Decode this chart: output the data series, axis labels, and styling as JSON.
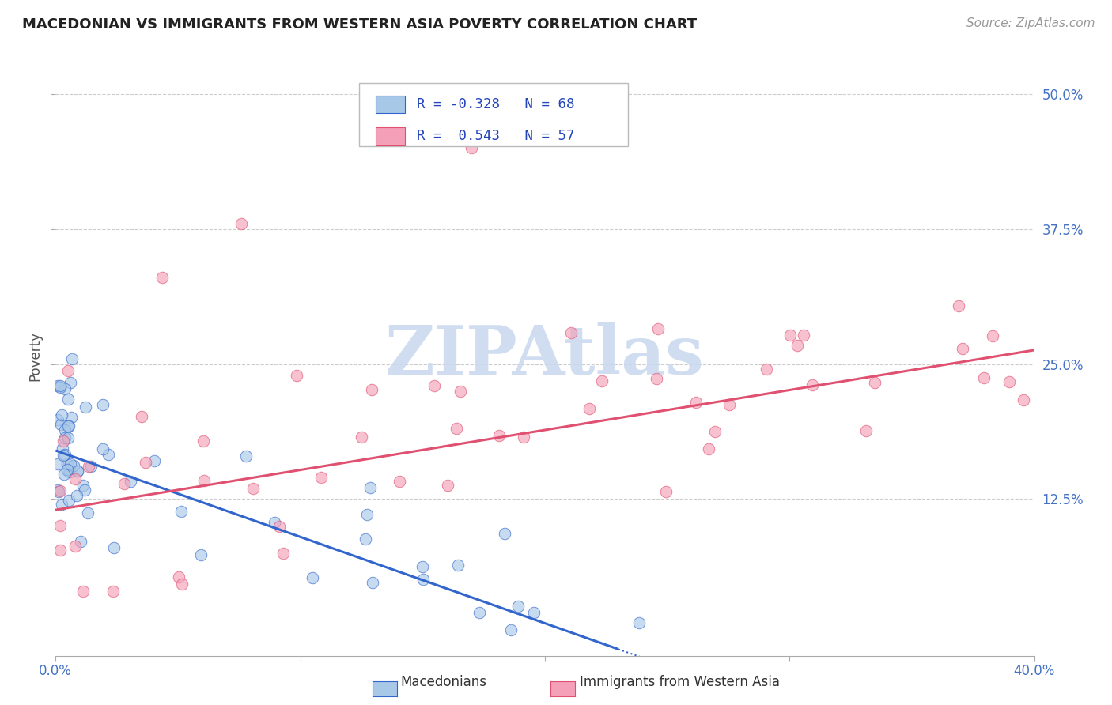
{
  "title": "MACEDONIAN VS IMMIGRANTS FROM WESTERN ASIA POVERTY CORRELATION CHART",
  "source": "Source: ZipAtlas.com",
  "ylabel": "Poverty",
  "y_tick_labels": [
    "12.5%",
    "25.0%",
    "37.5%",
    "50.0%"
  ],
  "y_tick_values": [
    0.125,
    0.25,
    0.375,
    0.5
  ],
  "xlim": [
    0.0,
    0.4
  ],
  "ylim": [
    -0.02,
    0.535
  ],
  "color_blue": "#A8C8E8",
  "color_pink": "#F4A0B8",
  "color_blue_line": "#3366CC",
  "color_pink_line": "#E05070",
  "watermark_color": "#C8D8EE",
  "legend_r1": "R = -0.328",
  "legend_n1": "N = 68",
  "legend_r2": "R =  0.543",
  "legend_n2": "N = 57"
}
